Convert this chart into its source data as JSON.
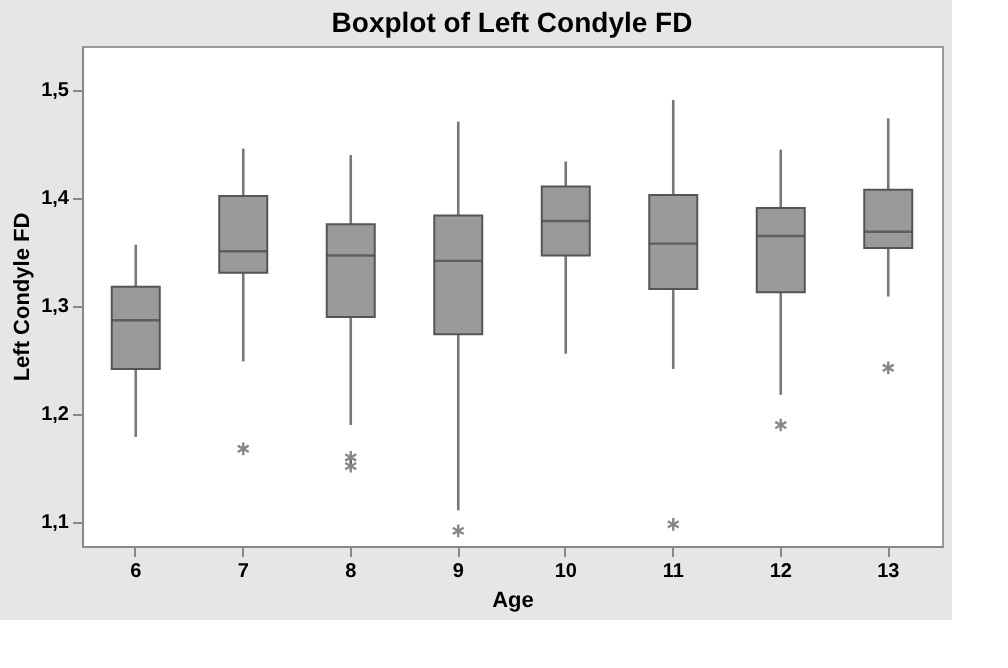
{
  "chart_data": {
    "type": "box",
    "title": "Boxplot of Left Condyle FD",
    "xlabel": "Age",
    "ylabel": "Left Condyle FD",
    "categories": [
      "6",
      "7",
      "8",
      "9",
      "10",
      "11",
      "12",
      "13"
    ],
    "color": "#9a9a9a",
    "boxes": [
      {
        "low": 1.178,
        "q1": 1.241,
        "median": 1.286,
        "q3": 1.317,
        "high": 1.356
      },
      {
        "low": 1.248,
        "q1": 1.33,
        "median": 1.35,
        "q3": 1.401,
        "high": 1.445,
        "outliers": [
          1.167
        ]
      },
      {
        "low": 1.189,
        "q1": 1.289,
        "median": 1.346,
        "q3": 1.375,
        "high": 1.439,
        "outliers": [
          1.159,
          1.151
        ]
      },
      {
        "low": 1.11,
        "q1": 1.273,
        "median": 1.341,
        "q3": 1.383,
        "high": 1.47,
        "outliers": [
          1.091
        ]
      },
      {
        "low": 1.255,
        "q1": 1.346,
        "median": 1.378,
        "q3": 1.41,
        "high": 1.433
      },
      {
        "low": 1.241,
        "q1": 1.315,
        "median": 1.357,
        "q3": 1.402,
        "high": 1.49,
        "outliers": [
          1.097
        ]
      },
      {
        "low": 1.217,
        "q1": 1.312,
        "median": 1.364,
        "q3": 1.39,
        "high": 1.444,
        "outliers": [
          1.189
        ]
      },
      {
        "low": 1.308,
        "q1": 1.353,
        "median": 1.368,
        "q3": 1.407,
        "high": 1.473,
        "outliers": [
          1.242
        ]
      }
    ],
    "ylim": [
      1.077,
      1.54
    ],
    "yticks": [
      {
        "value": 1.1,
        "label": "1,1"
      },
      {
        "value": 1.2,
        "label": "1,2"
      },
      {
        "value": 1.3,
        "label": "1,3"
      },
      {
        "value": 1.4,
        "label": "1,4"
      },
      {
        "value": 1.5,
        "label": "1,5"
      }
    ],
    "grid": false
  }
}
